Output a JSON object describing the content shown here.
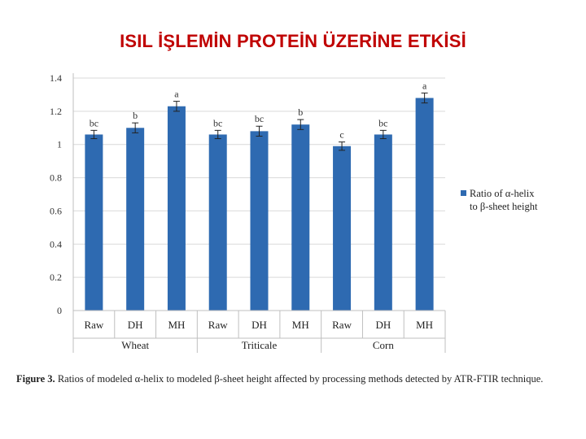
{
  "slide": {
    "title": "ISIL İŞLEMİN PROTEİN ÜZERİNE ETKİSİ"
  },
  "caption": {
    "label": "Figure 3.",
    "text": "Ratios of modeled α-helix to modeled β-sheet height affected by processing methods detected by ATR-FTIR technique."
  },
  "colors": {
    "bar": "#2e6ab1",
    "grid": "#d9d9d9",
    "title": "#c00000"
  },
  "chart_data": {
    "type": "bar",
    "title": "",
    "xlabel": "",
    "ylabel": "",
    "ylim": [
      0,
      1.4
    ],
    "yticks": [
      "0",
      "0.2",
      "0.4",
      "0.6",
      "0.8",
      "1",
      "1.2",
      "1.4"
    ],
    "grid": true,
    "legend_position": "right",
    "categories": [
      "Raw",
      "DH",
      "MH",
      "Raw",
      "DH",
      "MH",
      "Raw",
      "DH",
      "MH"
    ],
    "groups": [
      "Wheat",
      "Triticale",
      "Corn"
    ],
    "series": [
      {
        "name": "Ratio of α-helix to β-sheet height",
        "values": [
          1.06,
          1.1,
          1.23,
          1.06,
          1.08,
          1.12,
          0.99,
          1.06,
          1.28
        ],
        "errors": [
          0.025,
          0.03,
          0.03,
          0.025,
          0.03,
          0.03,
          0.025,
          0.025,
          0.03
        ],
        "labels": [
          "bc",
          "b",
          "a",
          "bc",
          "bc",
          "b",
          "c",
          "bc",
          "a"
        ]
      }
    ]
  }
}
